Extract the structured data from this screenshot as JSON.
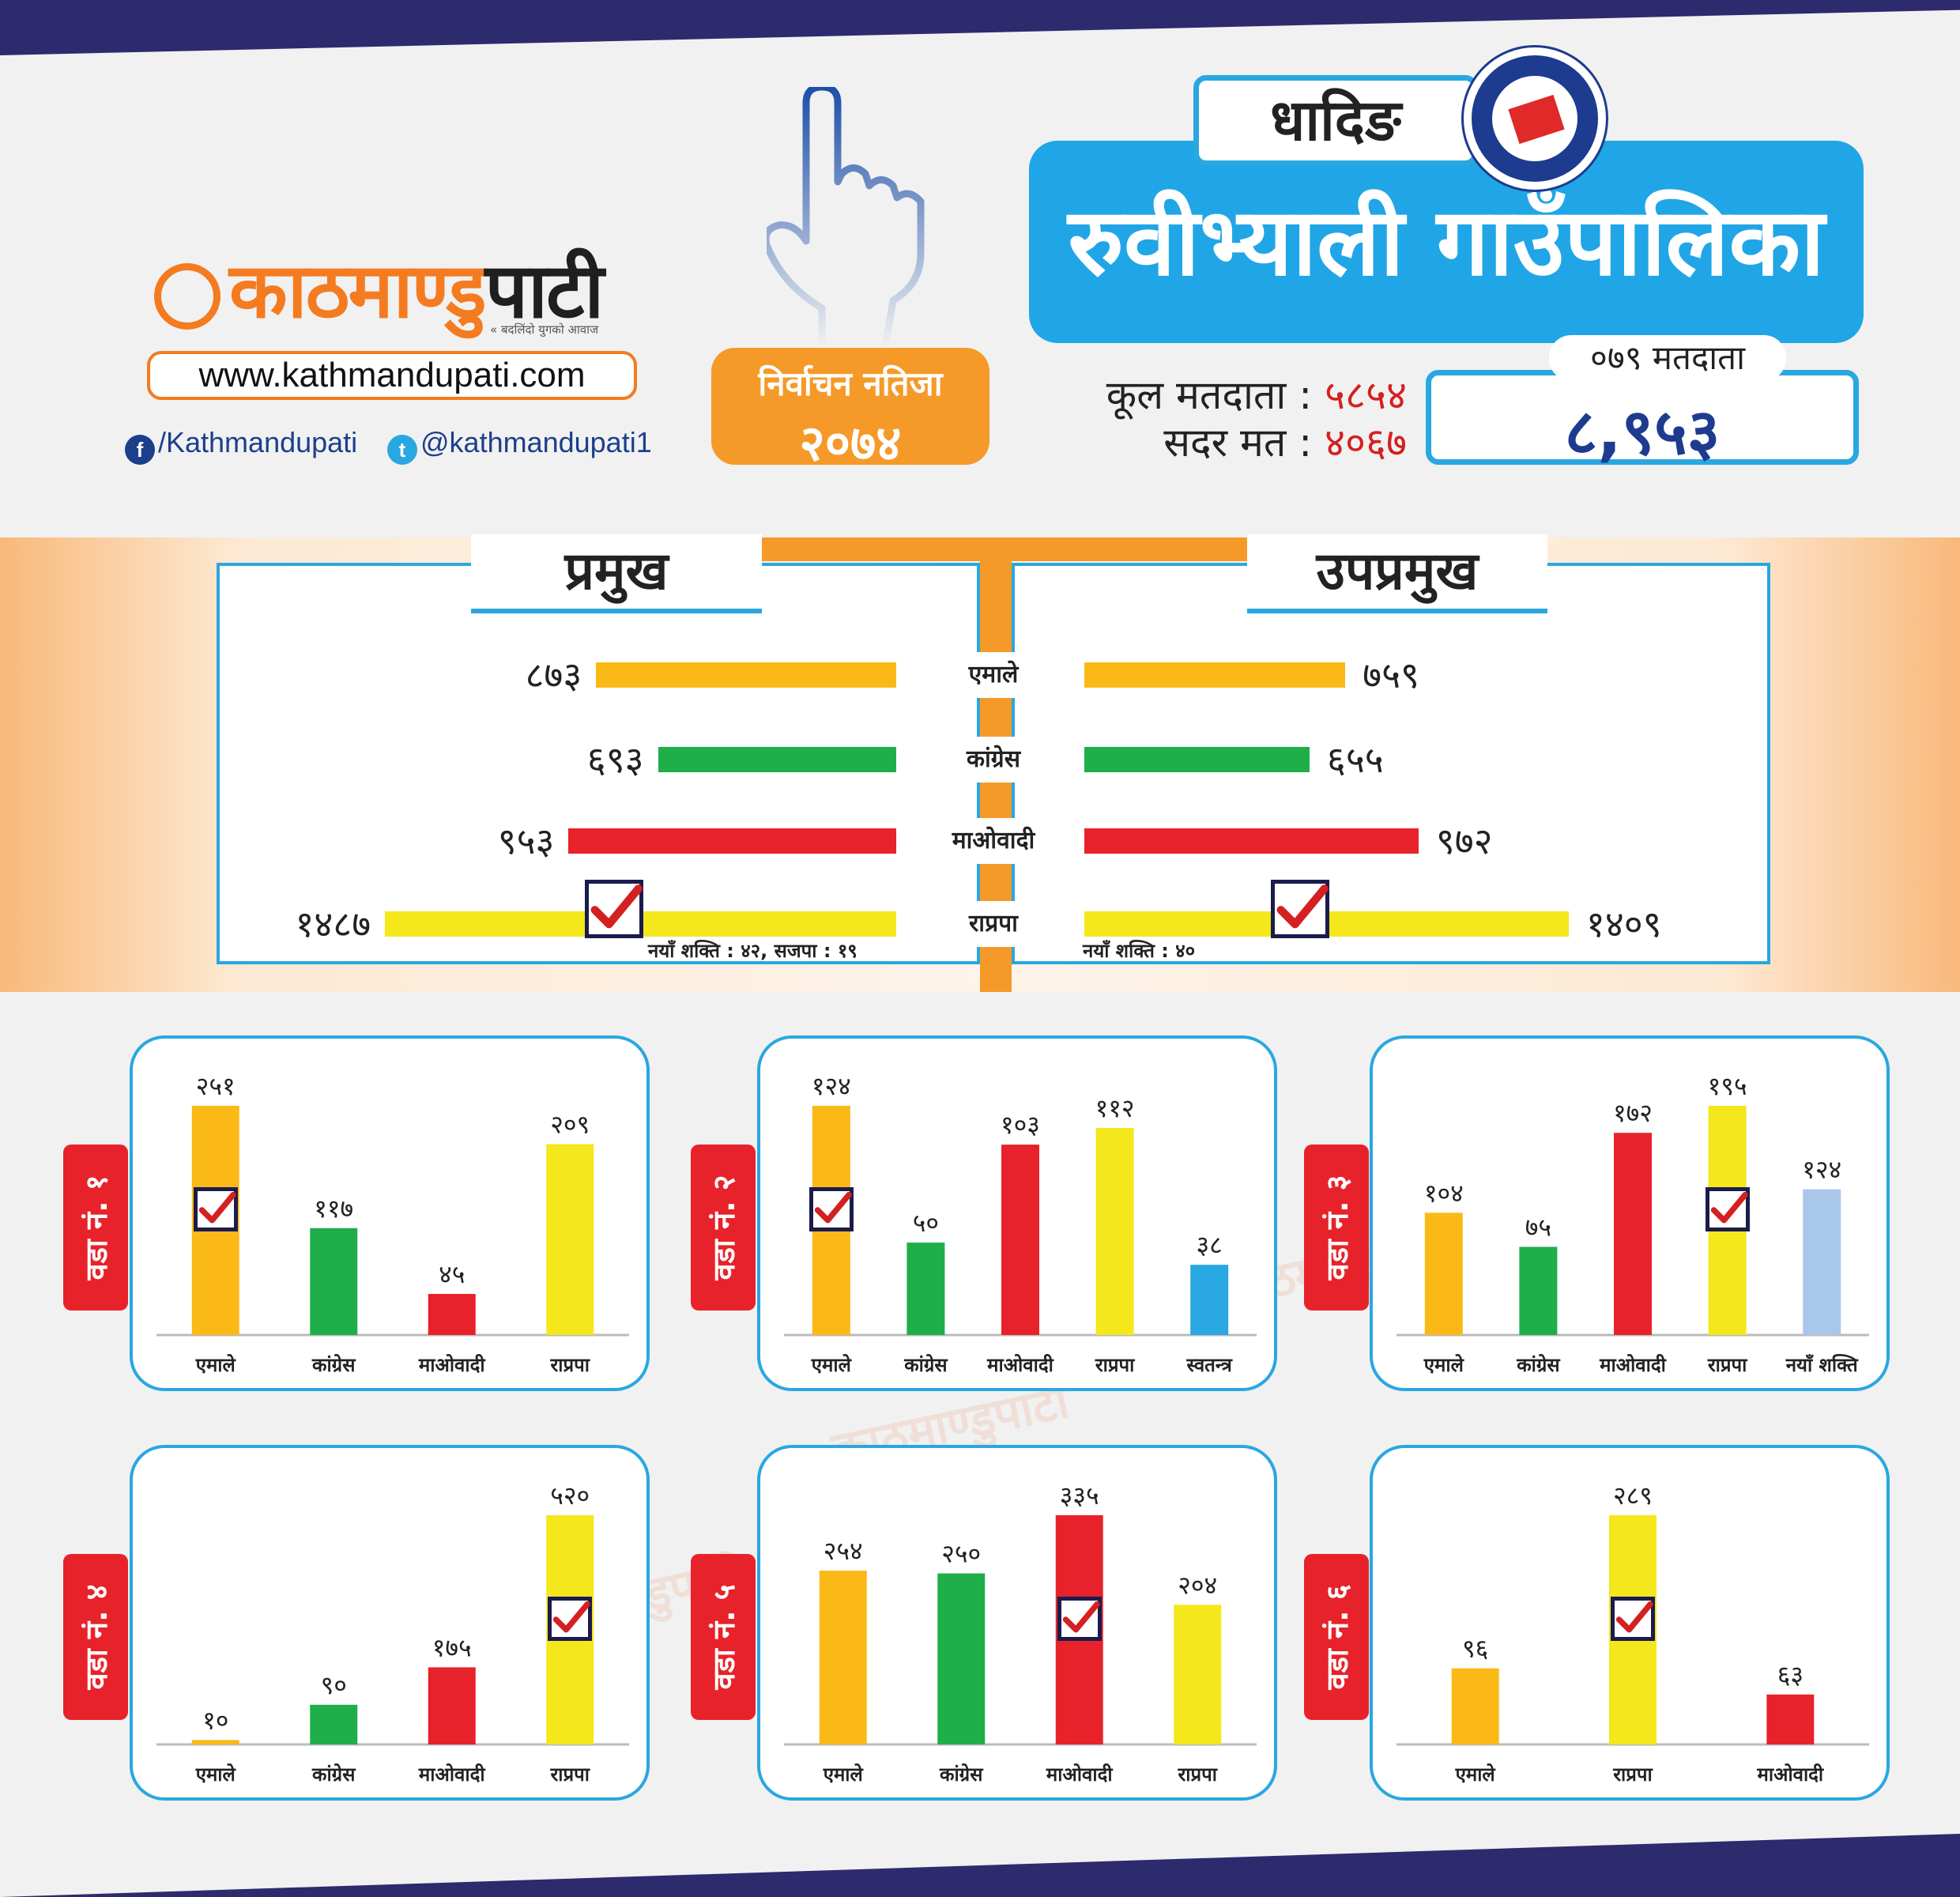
{
  "header": {
    "brand_a": "काठमाण्डु",
    "brand_b": "पाटी",
    "tagline": "« बदलिंदो युगको आवाज",
    "url": "www.kathmandupati.com",
    "facebook": "/Kathmandupati",
    "twitter": "@kathmandupati1",
    "result_line1": "निर्वाचन नतिजा",
    "result_line2": "२०७४",
    "district": "धादिङ",
    "municipality": "रुवीभ्याली गाउँपालिका",
    "total_voters_label": "कूल मतदाता :",
    "total_voters_value": "५८५४",
    "valid_votes_label": "सदर मत :",
    "valid_votes_value": "४०६७",
    "voters_079_label": "०७९ मतदाता",
    "voters_079_value": "८,९५३"
  },
  "colors": {
    "एमाले": "#fbb917",
    "कांग्रेस": "#1fae4a",
    "माओवादी": "#e8222a",
    "राप्रपा": "#f4e71b",
    "स्वतन्त्र": "#29a7e1",
    "नयाँ शक्ति": "#a9c7ea"
  },
  "chart_data": [
    {
      "type": "bar",
      "orientation": "horizontal",
      "title": "प्रमुख",
      "categories": [
        "एमाले",
        "कांग्रेस",
        "माओवादी",
        "राप्रपा"
      ],
      "values": [
        873,
        693,
        953,
        1487
      ],
      "labels": [
        "८७३",
        "६९३",
        "९५३",
        "१४८७"
      ],
      "winner": "राप्रपा",
      "note": "नयाँ शक्ति : ४२, सजपा : १९"
    },
    {
      "type": "bar",
      "orientation": "horizontal",
      "title": "उपप्रमुख",
      "categories": [
        "एमाले",
        "कांग्रेस",
        "माओवादी",
        "राप्रपा"
      ],
      "values": [
        759,
        655,
        972,
        1409
      ],
      "labels": [
        "७५९",
        "६५५",
        "९७२",
        "१४०९"
      ],
      "winner": "राप्रपा",
      "note": "नयाँ शक्ति : ४०"
    },
    {
      "type": "bar",
      "title": "वडा नं. १",
      "categories": [
        "एमाले",
        "कांग्रेस",
        "माओवादी",
        "राप्रपा"
      ],
      "values": [
        251,
        117,
        45,
        209
      ],
      "labels": [
        "२५१",
        "११७",
        "४५",
        "२०९"
      ],
      "winner": "एमाले"
    },
    {
      "type": "bar",
      "title": "वडा नं. २",
      "categories": [
        "एमाले",
        "कांग्रेस",
        "माओवादी",
        "राप्रपा",
        "स्वतन्त्र"
      ],
      "values": [
        124,
        50,
        103,
        112,
        38
      ],
      "labels": [
        "१२४",
        "५०",
        "१०३",
        "११२",
        "३८"
      ],
      "winner": "एमाले"
    },
    {
      "type": "bar",
      "title": "वडा नं. ३",
      "categories": [
        "एमाले",
        "कांग्रेस",
        "माओवादी",
        "राप्रपा",
        "नयाँ शक्ति"
      ],
      "values": [
        104,
        75,
        172,
        195,
        124
      ],
      "labels": [
        "१०४",
        "७५",
        "१७२",
        "१९५",
        "१२४"
      ],
      "winner": "राप्रपा"
    },
    {
      "type": "bar",
      "title": "वडा नं. ४",
      "categories": [
        "एमाले",
        "कांग्रेस",
        "माओवादी",
        "राप्रपा"
      ],
      "values": [
        10,
        90,
        175,
        520
      ],
      "labels": [
        "१०",
        "९०",
        "१७५",
        "५२०"
      ],
      "winner": "राप्रपा"
    },
    {
      "type": "bar",
      "title": "वडा नं. ५",
      "categories": [
        "एमाले",
        "कांग्रेस",
        "माओवादी",
        "राप्रपा"
      ],
      "values": [
        254,
        250,
        335,
        204
      ],
      "labels": [
        "२५४",
        "२५०",
        "३३५",
        "२०४"
      ],
      "winner": "माओवादी"
    },
    {
      "type": "bar",
      "title": "वडा नं. ६",
      "categories": [
        "एमाले",
        "राप्रपा",
        "माओवादी"
      ],
      "values": [
        96,
        289,
        63
      ],
      "labels": [
        "९६",
        "२८९",
        "६३"
      ],
      "winner": "राप्रपा"
    }
  ]
}
